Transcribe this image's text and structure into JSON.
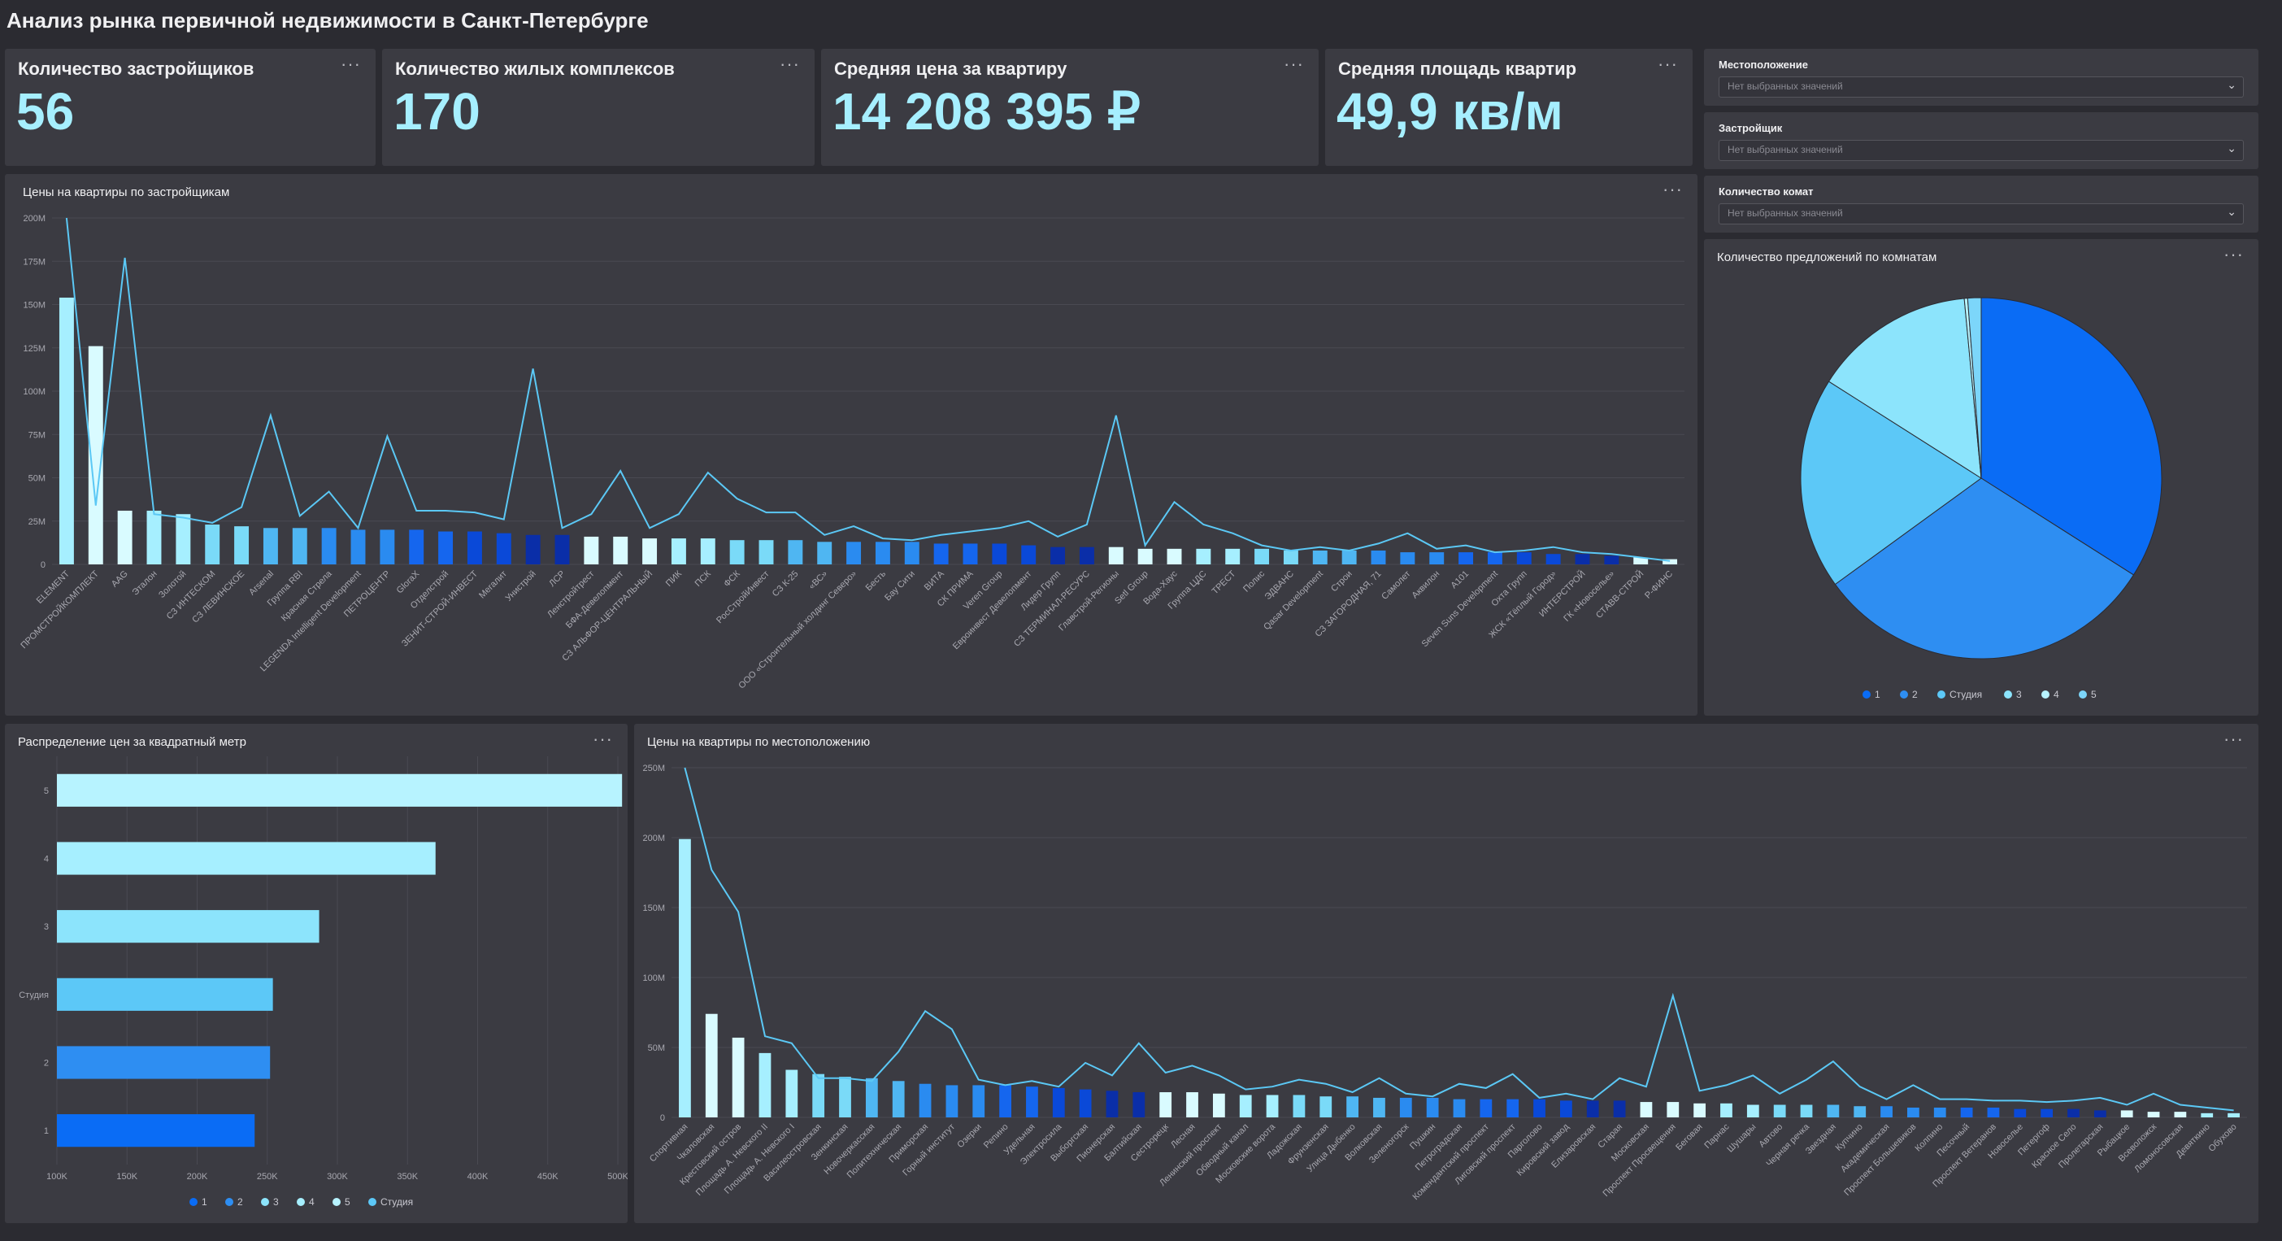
{
  "page": {
    "title": "Анализ рынка первичной недвижимости в Санкт-Петербурге"
  },
  "kpis": [
    {
      "label": "Количество застройщиков",
      "value": "56"
    },
    {
      "label": "Количество жилых комплексов",
      "value": "170"
    },
    {
      "label": "Средняя цена за квартиру",
      "value": "14 208 395 ₽"
    },
    {
      "label": "Средняя площадь квартир",
      "value": "49,9 кв/м"
    }
  ],
  "filters": [
    {
      "label": "Местоположение",
      "placeholder": "Нет выбранных значений"
    },
    {
      "label": "Застройщик",
      "placeholder": "Нет выбранных значений"
    },
    {
      "label": "Количество комат",
      "placeholder": "Нет выбранных значений"
    }
  ],
  "icons": {
    "menu": "more-dots-icon",
    "dropdown": "chevron-down-icon",
    "menu_glyph": "···",
    "dropdown_glyph": "⌄"
  },
  "colors": {
    "accent": "#a6efff",
    "line": "#5bc8f5",
    "bg": "#2b2b31",
    "card": "#3b3b42"
  },
  "chart_data": [
    {
      "type": "bar",
      "title": "Цены на квартиры по застройщикам",
      "note": "columns = average price, line = maximum price",
      "ylim": [
        0,
        200
      ],
      "yticks": [
        "0",
        "25M",
        "50M",
        "75M",
        "100M",
        "125M",
        "150M",
        "175M",
        "200M"
      ],
      "categories": [
        "ELEMENT",
        "ПРОМСТРОЙКОМПЛЕКТ",
        "AAG",
        "Эталон",
        "Золотой",
        "СЗ ИНТЕСКОМ",
        "СЗ ЛЕВИНСКОЕ",
        "Arsenal",
        "Группа RBI",
        "Красная Стрела",
        "LEGENDA Intelligent Development",
        "ПЕТРОЦЕНТР",
        "GloraX",
        "Отделстрой",
        "ЗЕНИТ-СТРОЙ-ИНВЕСТ",
        "Мегалит",
        "Унистрой",
        "ЛСР",
        "Ленстройтрест",
        "БФА-Девелопмент",
        "СЗ АЛЬФОР-ЦЕНТРАЛЬНЫЙ",
        "ПИК",
        "ПСК",
        "ФСК",
        "РосСтройИнвест",
        "СЗ К-25",
        "«ВС»",
        "ООО «Строительный холдинг Северо»",
        "Бесть",
        "Бау Сити",
        "ВИТА",
        "СК ПРИМА",
        "Veren Group",
        "Евроинвест Девелопмент",
        "Лидер Групп",
        "СЗ ТЕРМИНАЛ-РЕСУРС",
        "Главстрой-Регионы",
        "Setl Group",
        "Вода-Хаус",
        "Группа ЦДС",
        "ТРЕСТ",
        "Полис",
        "ЭДВАНС",
        "Qasar Development",
        "Строи",
        "СЗ ЗАГОРОДНАЯ, 71",
        "Самолет",
        "Аквилон",
        "А101",
        "Seven Suns Development",
        "Охта Групп",
        "ЖСК «Тёплый Город»",
        "ИНТЕРСТРОЙ",
        "ГК «Новоселье»",
        "СТАВВ-СТРОЙ",
        "Р-ФИНС"
      ],
      "series": [
        {
          "values": [
            154,
            126,
            31,
            31,
            29,
            23,
            22,
            21,
            21,
            21,
            20,
            20,
            20,
            19,
            19,
            18,
            17,
            17,
            16,
            16,
            15,
            15,
            15,
            14,
            14,
            14,
            13,
            13,
            13,
            13,
            12,
            12,
            12,
            11,
            10,
            10,
            10,
            9,
            9,
            9,
            9,
            9,
            8,
            8,
            8,
            8,
            7,
            7,
            7,
            7,
            7,
            6,
            6,
            5,
            4,
            3
          ]
        },
        {
          "values": [
            200,
            34,
            177,
            29,
            27,
            24,
            33,
            86,
            28,
            42,
            21,
            74,
            31,
            31,
            30,
            26,
            113,
            21,
            29,
            54,
            21,
            29,
            53,
            38,
            30,
            30,
            17,
            22,
            15,
            14,
            17,
            19,
            21,
            25,
            16,
            23,
            86,
            11,
            36,
            23,
            18,
            11,
            8,
            10,
            8,
            12,
            18,
            9,
            11,
            7,
            8,
            10,
            7,
            6,
            4,
            2
          ]
        }
      ],
      "xlabels_left": [
        "ELEMENT",
        "ПРОМСТРОЙКОМПЛЕКТ",
        "AAG",
        "Эталон",
        "Золотой",
        "СЗ ИНТЕСКОМ",
        "СЗ ЛЕВИНСКОЕ",
        "Arsenal",
        "Группа RBI",
        "Красная Стрела",
        "LEGENDA Intelligent Development",
        "ПЕТРОЦЕНТР",
        "GloraX",
        "Отделстрой",
        "ЗЕНИТ-СТРОЙ-ИНВЕСТ",
        "Мегалит",
        "Унистрой",
        "ЛСР",
        "Ленстройтрест",
        "БФА-Девелопмент",
        "СЗ АЛЬФОР-ЦЕНТРАЛЬНЫЙ",
        "ПИК",
        "ПСК",
        "ФСК",
        "РосСтройИнвест",
        "СЗ К-25",
        "«ВС»",
        "ООО «Строительный холдинг Северо»",
        "Бесть",
        "Бау Сити",
        "ВИТА",
        "СК ПРИМА",
        "Veren Group",
        "Евроинвест Девелопмент",
        "Лидер Групп",
        "СЗ ТЕРМИНАЛ-РЕСУРС",
        "Главстрой-Регионы",
        "Setl Group",
        "Вода-Хаус",
        "Группа ЦДС",
        "ТРЕСТ",
        "Полис",
        "ЭДВАНС",
        "Qasar Development",
        "Строи",
        "СЗ ЗАГОРОДНАЯ, 71",
        "Самолет",
        "Аквилон",
        "А101",
        "Seven Suns Development",
        "Охта Групп",
        "ЖСК «Тёплый Город»",
        "ИНТЕРСТРОЙ",
        "ГК «Новоселье»",
        "СТАВВ-СТРОЙ",
        "Р-ФИНС"
      ]
    },
    {
      "type": "pie",
      "title": "Количество предложений по комнатам",
      "legend": [
        "1",
        "2",
        "Студия",
        "3",
        "4",
        "5"
      ],
      "legend_colors": [
        "#0a6cf5",
        "#2e8ef2",
        "#5cc8f7",
        "#8ce4fc",
        "#b7f3ff",
        "#7cd6fa"
      ],
      "slices": [
        {
          "label": "1",
          "value": 34,
          "color": "#0a6cf5"
        },
        {
          "label": "2",
          "value": 31,
          "color": "#2e8ef2"
        },
        {
          "label": "Студия",
          "value": 19,
          "color": "#5cc8f7"
        },
        {
          "label": "3",
          "value": 14.5,
          "color": "#8ce4fc"
        },
        {
          "label": "4",
          "value": 0.3,
          "color": "#b7f3ff"
        },
        {
          "label": "5",
          "value": 1.2,
          "color": "#7cd6fa"
        }
      ]
    },
    {
      "type": "bar",
      "orientation": "horizontal",
      "title": "Распределение цен за квадратный метр",
      "categories": [
        "5",
        "4",
        "3",
        "Студия",
        "2",
        "1"
      ],
      "values": [
        503000,
        370000,
        287000,
        254000,
        252000,
        241000
      ],
      "colors": [
        "#b7f3ff",
        "#a6efff",
        "#8ce4fc",
        "#5cc8f7",
        "#2e8ef2",
        "#0a6cf5"
      ],
      "xlim": [
        100000,
        500000
      ],
      "xticks": [
        "100K",
        "150K",
        "200K",
        "250K",
        "300K",
        "350K",
        "400K",
        "450K",
        "500K"
      ],
      "legend": [
        "1",
        "2",
        "3",
        "4",
        "5",
        "Студия"
      ],
      "legend_colors": [
        "#0a6cf5",
        "#2e8ef2",
        "#8ce4fc",
        "#a6efff",
        "#b7f3ff",
        "#5cc8f7"
      ]
    },
    {
      "type": "bar",
      "title": "Цены на квартиры по местоположению",
      "note": "columns = average price, line = maximum price",
      "ylim": [
        0,
        250
      ],
      "yticks": [
        "0",
        "50M",
        "100M",
        "150M",
        "200M",
        "250M"
      ],
      "categories": [
        "Спортивная",
        "Чкаловская",
        "Крестовский остров",
        "Площадь А. Невского II",
        "Площадь А. Невского I",
        "Василеостровская",
        "Зенкинская",
        "Новочеркасская",
        "Политехническая",
        "Приморская",
        "Горный институт",
        "Озерки",
        "Репино",
        "Удельная",
        "Электросила",
        "Выборгская",
        "Пионерская",
        "Балтийская",
        "Сестрорецк",
        "Лесная",
        "Ленинский проспект",
        "Обводный канал",
        "Московские ворота",
        "Ладожская",
        "Фрунзенская",
        "Улица Дыбенко",
        "Волковская",
        "Зеленогорск",
        "Пушкин",
        "Петроградская",
        "Комендантский проспект",
        "Лиговский проспект",
        "Парголово",
        "Кировский завод",
        "Елизаровская",
        "Старая",
        "Московская",
        "Проспект Просвещения",
        "Беговая",
        "Парнас",
        "Шушары",
        "Автово",
        "Черная речка",
        "Звездная",
        "Купчино",
        "Академическая",
        "Проспект Большевиков",
        "Колпино",
        "Песочный",
        "Проспект Ветеранов",
        "Новоселье",
        "Петергоф",
        "Красное Село",
        "Пролетарская",
        "Рыбацкое",
        "Всеволожск",
        "Ломоносовская",
        "Девяткино",
        "Обухово"
      ],
      "series": [
        {
          "values": [
            199,
            74,
            57,
            46,
            34,
            31,
            29,
            28,
            26,
            24,
            23,
            23,
            23,
            22,
            21,
            20,
            19,
            18,
            18,
            18,
            17,
            16,
            16,
            16,
            15,
            15,
            14,
            14,
            14,
            13,
            13,
            13,
            13,
            12,
            12,
            12,
            11,
            11,
            10,
            10,
            9,
            9,
            9,
            9,
            8,
            8,
            7,
            7,
            7,
            7,
            6,
            6,
            6,
            5,
            5,
            4,
            4,
            3,
            3
          ]
        },
        {
          "values": [
            250,
            177,
            147,
            58,
            53,
            28,
            28,
            26,
            47,
            76,
            63,
            27,
            23,
            26,
            22,
            39,
            30,
            53,
            32,
            37,
            30,
            20,
            22,
            27,
            24,
            18,
            28,
            17,
            15,
            24,
            21,
            31,
            14,
            17,
            13,
            28,
            22,
            87,
            19,
            23,
            30,
            17,
            27,
            40,
            22,
            13,
            23,
            13,
            13,
            12,
            12,
            11,
            12,
            14,
            9,
            17,
            9,
            7,
            5
          ]
        }
      ]
    }
  ]
}
